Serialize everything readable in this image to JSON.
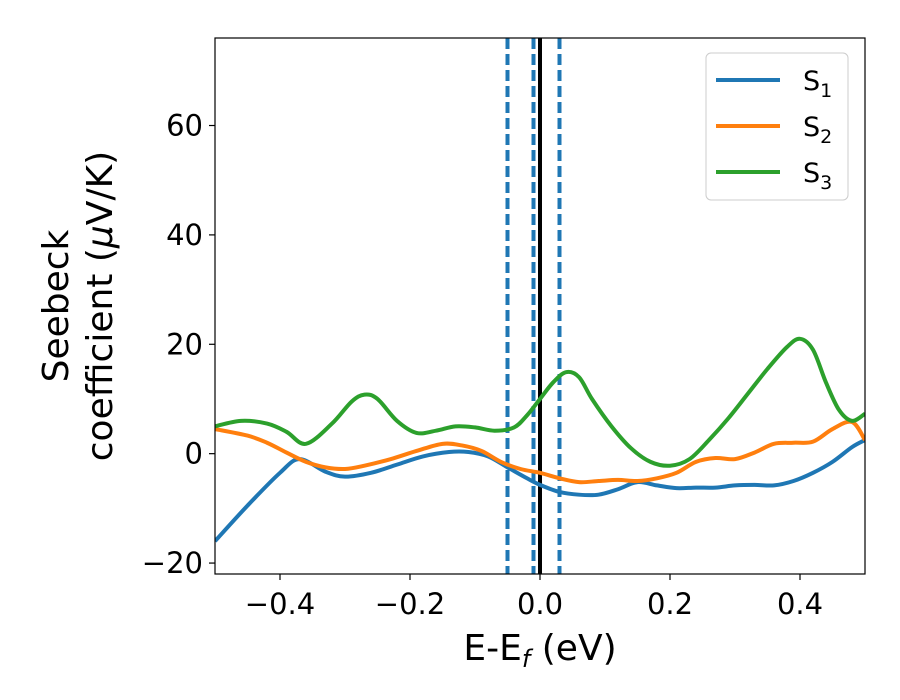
{
  "chart_data": {
    "type": "line",
    "xlabel": "E-E",
    "xlabel_sub": "f",
    "xlabel_unit": " (eV)",
    "ylabel_line1": "Seebeck",
    "ylabel_line2": "coefficient  (",
    "ylabel_mu": "μ",
    "ylabel_unit": "V/K)",
    "xlim": [
      -0.5,
      0.5
    ],
    "ylim": [
      -22,
      76
    ],
    "xticks": [
      -0.4,
      -0.2,
      0.0,
      0.2,
      0.4
    ],
    "xtick_labels": [
      "−0.4",
      "−0.2",
      "0.0",
      "0.2",
      "0.4"
    ],
    "yticks": [
      -20,
      0,
      20,
      40,
      60
    ],
    "ytick_labels": [
      "−20",
      "0",
      "20",
      "40",
      "60"
    ],
    "grid": false,
    "legend_position": "top-right",
    "vlines": [
      {
        "x": 0.0,
        "color": "#000000",
        "style": "solid"
      },
      {
        "x": -0.05,
        "color": "#1f77b4",
        "style": "dashed"
      },
      {
        "x": -0.01,
        "color": "#1f77b4",
        "style": "dashed"
      },
      {
        "x": 0.03,
        "color": "#1f77b4",
        "style": "dashed"
      }
    ],
    "series": [
      {
        "name": "S",
        "name_sub": "1",
        "color": "#1f77b4",
        "x": [
          -0.5,
          -0.45,
          -0.4,
          -0.37,
          -0.33,
          -0.3,
          -0.26,
          -0.22,
          -0.18,
          -0.14,
          -0.11,
          -0.08,
          -0.05,
          -0.02,
          0.0,
          0.03,
          0.06,
          0.09,
          0.12,
          0.15,
          0.18,
          0.21,
          0.24,
          0.27,
          0.3,
          0.33,
          0.36,
          0.39,
          0.42,
          0.45,
          0.48,
          0.5
        ],
        "y": [
          -16,
          -9.5,
          -3.5,
          -1,
          -3.3,
          -4.2,
          -3.5,
          -2,
          -0.5,
          0.3,
          0.3,
          -0.5,
          -2.5,
          -4.5,
          -5.7,
          -7,
          -7.5,
          -7.5,
          -6.5,
          -5.2,
          -5.8,
          -6.3,
          -6.2,
          -6.2,
          -5.8,
          -5.7,
          -5.8,
          -5,
          -3.5,
          -1.5,
          1.2,
          2.5
        ]
      },
      {
        "name": "S",
        "name_sub": "2",
        "color": "#ff7f0e",
        "x": [
          -0.5,
          -0.45,
          -0.42,
          -0.39,
          -0.36,
          -0.33,
          -0.3,
          -0.27,
          -0.23,
          -0.19,
          -0.15,
          -0.12,
          -0.09,
          -0.06,
          -0.03,
          0.0,
          0.03,
          0.06,
          0.09,
          0.12,
          0.15,
          0.18,
          0.21,
          0.24,
          0.27,
          0.3,
          0.33,
          0.36,
          0.39,
          0.42,
          0.45,
          0.48,
          0.5
        ],
        "y": [
          4.5,
          3.3,
          2.0,
          0.2,
          -1.5,
          -2.5,
          -2.8,
          -2.2,
          -1.0,
          0.5,
          1.8,
          1.5,
          0.5,
          -1.5,
          -2.8,
          -3.5,
          -4.5,
          -5.2,
          -5,
          -4.8,
          -5,
          -4.5,
          -3.5,
          -1.5,
          -0.8,
          -1,
          0.2,
          1.8,
          2,
          2.2,
          4.5,
          5.8,
          2.5
        ]
      },
      {
        "name": "S",
        "name_sub": "3",
        "color": "#2ca02c",
        "x": [
          -0.5,
          -0.46,
          -0.42,
          -0.39,
          -0.36,
          -0.32,
          -0.29,
          -0.27,
          -0.25,
          -0.22,
          -0.19,
          -0.16,
          -0.13,
          -0.1,
          -0.07,
          -0.04,
          -0.02,
          0.0,
          0.02,
          0.04,
          0.06,
          0.08,
          0.11,
          0.14,
          0.17,
          0.2,
          0.23,
          0.26,
          0.29,
          0.32,
          0.35,
          0.38,
          0.4,
          0.42,
          0.44,
          0.46,
          0.48,
          0.5
        ],
        "y": [
          5,
          6,
          5.5,
          4,
          1.8,
          5.5,
          9.5,
          10.8,
          10,
          6,
          3.8,
          4.2,
          5,
          4.8,
          4.2,
          4.8,
          7,
          10,
          13,
          14.9,
          14,
          10,
          5,
          1,
          -1.5,
          -2.2,
          -1,
          2.5,
          6.5,
          11,
          15.5,
          19.5,
          21,
          19,
          13,
          8,
          6,
          7.3
        ]
      }
    ]
  }
}
